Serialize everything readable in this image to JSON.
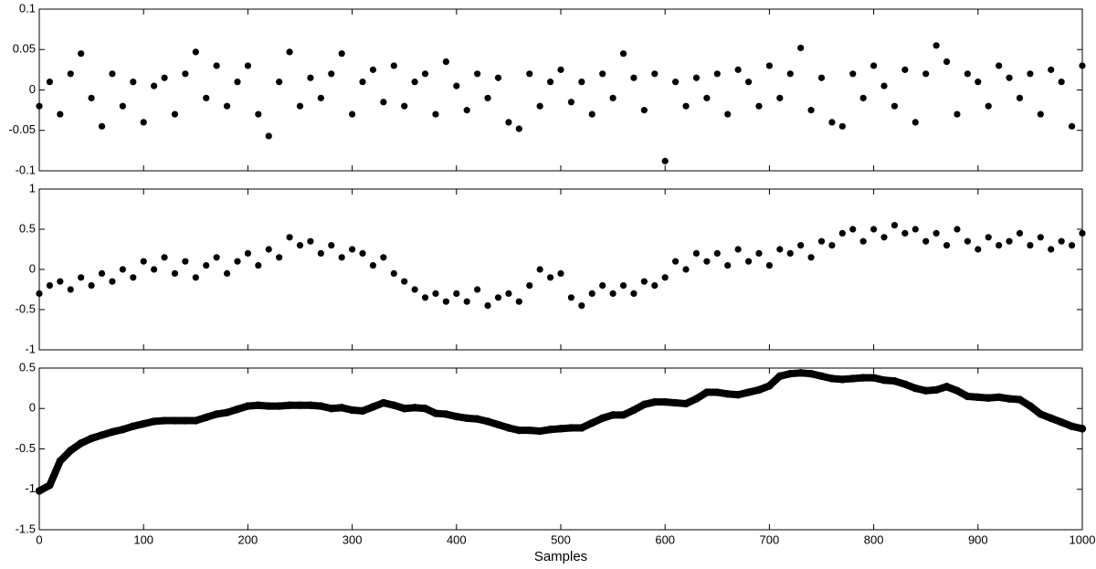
{
  "chart_data": [
    {
      "type": "scatter",
      "color": "#000000",
      "x": [
        0,
        10,
        20,
        30,
        40,
        50,
        60,
        70,
        80,
        90,
        100,
        110,
        120,
        130,
        140,
        150,
        160,
        170,
        180,
        190,
        200,
        210,
        220,
        230,
        240,
        250,
        260,
        270,
        280,
        290,
        300,
        310,
        320,
        330,
        340,
        350,
        360,
        370,
        380,
        390,
        400,
        410,
        420,
        430,
        440,
        450,
        460,
        470,
        480,
        490,
        500,
        510,
        520,
        530,
        540,
        550,
        560,
        570,
        580,
        590,
        600,
        610,
        620,
        630,
        640,
        650,
        660,
        670,
        680,
        690,
        700,
        710,
        720,
        730,
        740,
        750,
        760,
        770,
        780,
        790,
        800,
        810,
        820,
        830,
        840,
        850,
        860,
        870,
        880,
        890,
        900,
        910,
        920,
        930,
        940,
        950,
        960,
        970,
        980,
        990,
        1000
      ],
      "values": [
        -0.02,
        0.01,
        -0.03,
        0.02,
        0.045,
        -0.01,
        -0.045,
        0.02,
        -0.02,
        0.01,
        -0.04,
        0.005,
        0.015,
        -0.03,
        0.02,
        0.047,
        -0.01,
        0.03,
        -0.02,
        0.01,
        0.03,
        -0.03,
        -0.057,
        0.01,
        0.047,
        -0.02,
        0.015,
        -0.01,
        0.02,
        0.045,
        -0.03,
        0.01,
        0.025,
        -0.015,
        0.03,
        -0.02,
        0.01,
        0.02,
        -0.03,
        0.035,
        0.005,
        -0.025,
        0.02,
        -0.01,
        0.015,
        -0.04,
        -0.048,
        0.02,
        -0.02,
        0.01,
        0.025,
        -0.015,
        0.01,
        -0.03,
        0.02,
        -0.01,
        0.045,
        0.015,
        -0.025,
        0.02,
        -0.088,
        0.01,
        -0.02,
        0.015,
        -0.01,
        0.02,
        -0.03,
        0.025,
        0.01,
        -0.02,
        0.03,
        -0.01,
        0.02,
        0.052,
        -0.025,
        0.015,
        -0.04,
        -0.045,
        0.02,
        -0.01,
        0.03,
        0.005,
        -0.02,
        0.025,
        -0.04,
        0.02,
        0.055,
        0.035,
        -0.03,
        0.02,
        0.01,
        -0.02,
        0.03,
        0.015,
        -0.01,
        0.02,
        -0.03,
        0.025,
        0.01,
        -0.045,
        0.03
      ],
      "xlim": [
        0,
        1000
      ],
      "xticks": [
        0,
        100,
        200,
        300,
        400,
        500,
        600,
        700,
        800,
        900,
        1000
      ],
      "ylim": [
        -0.1,
        0.1
      ],
      "yticks": [
        -0.1,
        -0.05,
        0,
        0.05,
        0.1
      ]
    },
    {
      "type": "scatter",
      "color": "#000000",
      "x": [
        0,
        10,
        20,
        30,
        40,
        50,
        60,
        70,
        80,
        90,
        100,
        110,
        120,
        130,
        140,
        150,
        160,
        170,
        180,
        190,
        200,
        210,
        220,
        230,
        240,
        250,
        260,
        270,
        280,
        290,
        300,
        310,
        320,
        330,
        340,
        350,
        360,
        370,
        380,
        390,
        400,
        410,
        420,
        430,
        440,
        450,
        460,
        470,
        480,
        490,
        500,
        510,
        520,
        530,
        540,
        550,
        560,
        570,
        580,
        590,
        600,
        610,
        620,
        630,
        640,
        650,
        660,
        670,
        680,
        690,
        700,
        710,
        720,
        730,
        740,
        750,
        760,
        770,
        780,
        790,
        800,
        810,
        820,
        830,
        840,
        850,
        860,
        870,
        880,
        890,
        900,
        910,
        920,
        930,
        940,
        950,
        960,
        970,
        980,
        990,
        1000
      ],
      "values": [
        -0.3,
        -0.2,
        -0.15,
        -0.25,
        -0.1,
        -0.2,
        -0.05,
        -0.15,
        0.0,
        -0.1,
        0.1,
        0.0,
        0.15,
        -0.05,
        0.1,
        -0.1,
        0.05,
        0.15,
        -0.05,
        0.1,
        0.2,
        0.05,
        0.25,
        0.15,
        0.4,
        0.3,
        0.35,
        0.2,
        0.3,
        0.15,
        0.25,
        0.2,
        0.05,
        0.15,
        -0.05,
        -0.15,
        -0.25,
        -0.35,
        -0.3,
        -0.4,
        -0.3,
        -0.4,
        -0.25,
        -0.45,
        -0.35,
        -0.3,
        -0.4,
        -0.2,
        0.0,
        -0.1,
        -0.05,
        -0.35,
        -0.45,
        -0.3,
        -0.2,
        -0.3,
        -0.2,
        -0.3,
        -0.15,
        -0.2,
        -0.1,
        0.1,
        0.0,
        0.2,
        0.1,
        0.2,
        0.05,
        0.25,
        0.1,
        0.2,
        0.05,
        0.25,
        0.2,
        0.3,
        0.15,
        0.35,
        0.3,
        0.45,
        0.5,
        0.35,
        0.5,
        0.4,
        0.55,
        0.45,
        0.5,
        0.35,
        0.45,
        0.3,
        0.5,
        0.35,
        0.25,
        0.4,
        0.3,
        0.35,
        0.45,
        0.3,
        0.4,
        0.25,
        0.35,
        0.3,
        0.45
      ],
      "xlim": [
        0,
        1000
      ],
      "xticks": [
        0,
        100,
        200,
        300,
        400,
        500,
        600,
        700,
        800,
        900,
        1000
      ],
      "ylim": [
        -1,
        1
      ],
      "yticks": [
        -1,
        -0.5,
        0,
        0.5,
        1
      ]
    },
    {
      "type": "line",
      "color": "#000000",
      "xlabel": "Samples",
      "x": [
        0,
        10,
        20,
        30,
        40,
        50,
        60,
        70,
        80,
        90,
        100,
        110,
        120,
        130,
        140,
        150,
        160,
        170,
        180,
        190,
        200,
        210,
        220,
        230,
        240,
        250,
        260,
        270,
        280,
        290,
        300,
        310,
        320,
        330,
        340,
        350,
        360,
        370,
        380,
        390,
        400,
        410,
        420,
        430,
        440,
        450,
        460,
        470,
        480,
        490,
        500,
        510,
        520,
        530,
        540,
        550,
        560,
        570,
        580,
        590,
        600,
        610,
        620,
        630,
        640,
        650,
        660,
        670,
        680,
        690,
        700,
        710,
        720,
        730,
        740,
        750,
        760,
        770,
        780,
        790,
        800,
        810,
        820,
        830,
        840,
        850,
        860,
        870,
        880,
        890,
        900,
        910,
        920,
        930,
        940,
        950,
        960,
        970,
        980,
        990,
        1000
      ],
      "values": [
        -1.02,
        -0.95,
        -0.65,
        -0.52,
        -0.43,
        -0.37,
        -0.33,
        -0.29,
        -0.26,
        -0.22,
        -0.19,
        -0.16,
        -0.15,
        -0.15,
        -0.15,
        -0.15,
        -0.11,
        -0.07,
        -0.05,
        -0.01,
        0.03,
        0.04,
        0.03,
        0.03,
        0.04,
        0.04,
        0.04,
        0.03,
        0.0,
        0.01,
        -0.02,
        -0.03,
        0.02,
        0.07,
        0.04,
        0.0,
        0.01,
        0.0,
        -0.06,
        -0.07,
        -0.1,
        -0.12,
        -0.13,
        -0.16,
        -0.2,
        -0.24,
        -0.27,
        -0.27,
        -0.28,
        -0.26,
        -0.25,
        -0.24,
        -0.24,
        -0.18,
        -0.12,
        -0.08,
        -0.08,
        -0.02,
        0.05,
        0.08,
        0.08,
        0.07,
        0.06,
        0.12,
        0.2,
        0.2,
        0.18,
        0.17,
        0.2,
        0.23,
        0.28,
        0.4,
        0.43,
        0.44,
        0.43,
        0.4,
        0.37,
        0.36,
        0.37,
        0.38,
        0.38,
        0.35,
        0.34,
        0.3,
        0.25,
        0.22,
        0.23,
        0.27,
        0.22,
        0.15,
        0.14,
        0.13,
        0.14,
        0.12,
        0.11,
        0.03,
        -0.07,
        -0.12,
        -0.17,
        -0.22,
        -0.25
      ],
      "xlim": [
        0,
        1000
      ],
      "xticks": [
        0,
        100,
        200,
        300,
        400,
        500,
        600,
        700,
        800,
        900,
        1000
      ],
      "ylim": [
        -1.5,
        0.5
      ],
      "yticks": [
        -1.5,
        -1,
        -0.5,
        0,
        0.5
      ]
    }
  ]
}
